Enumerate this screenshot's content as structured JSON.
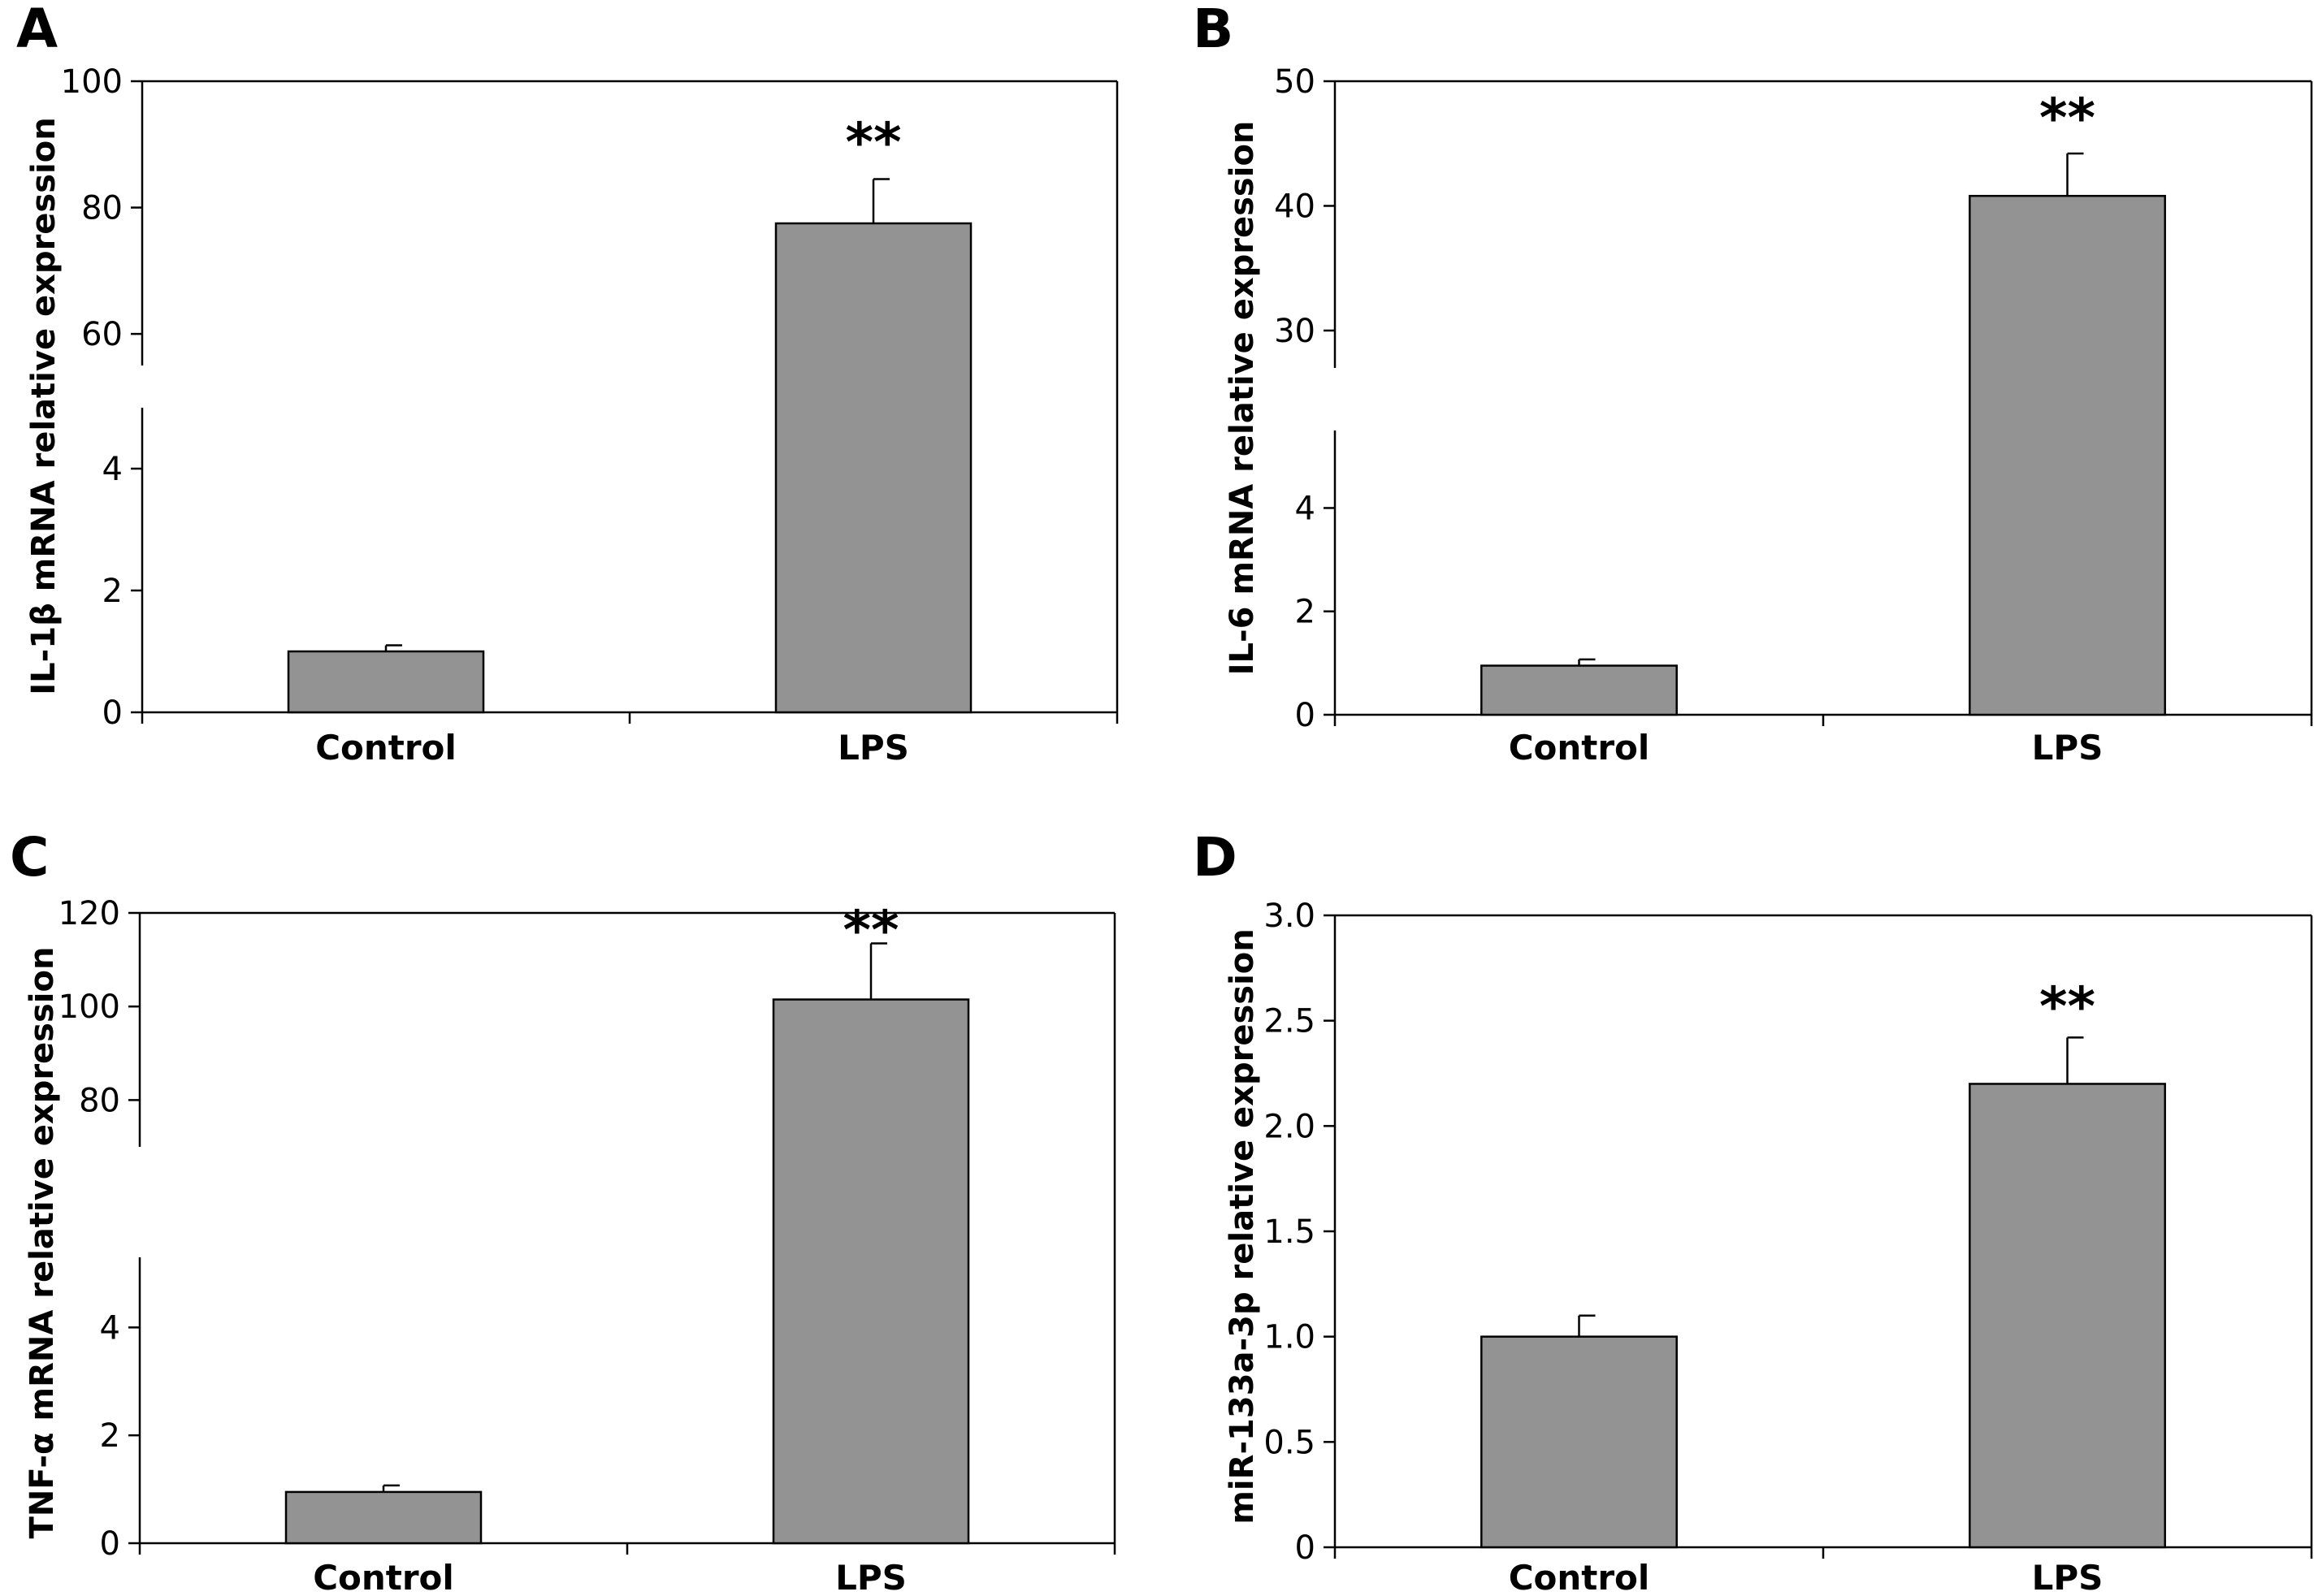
{
  "style": {
    "bar_color": "#939393",
    "line_color": "#000000"
  },
  "chart_data": [
    {
      "type": "bar",
      "panel": "A",
      "ylabel": "IL-1β mRNA relative expression",
      "categories": [
        "Control",
        "LPS"
      ],
      "values": [
        1.0,
        77.5
      ],
      "errors": [
        0.1,
        7.0
      ],
      "significance": [
        "",
        "**"
      ],
      "axis_break": true,
      "lower_range": [
        0,
        5
      ],
      "upper_range": [
        55,
        100
      ],
      "lower_ticks": [
        0,
        2,
        4
      ],
      "upper_ticks": [
        60,
        80,
        100
      ],
      "grid": false
    },
    {
      "type": "bar",
      "panel": "B",
      "ylabel": "IL-6 mRNA relative expression",
      "categories": [
        "Control",
        "LPS"
      ],
      "values": [
        0.95,
        40.8
      ],
      "errors": [
        0.12,
        3.4
      ],
      "significance": [
        "",
        "**"
      ],
      "axis_break": true,
      "lower_range": [
        0,
        5.5
      ],
      "upper_range": [
        27,
        50
      ],
      "lower_ticks": [
        0,
        2,
        4
      ],
      "upper_ticks": [
        30,
        40,
        50
      ],
      "grid": false
    },
    {
      "type": "bar",
      "panel": "C",
      "ylabel": "TNF-α mRNA relative expression",
      "categories": [
        "Control",
        "LPS"
      ],
      "values": [
        0.95,
        101.5
      ],
      "errors": [
        0.12,
        12.0
      ],
      "significance": [
        "",
        "**"
      ],
      "axis_break": true,
      "lower_range": [
        0,
        5.3
      ],
      "upper_range": [
        70,
        120
      ],
      "lower_ticks": [
        0,
        2,
        4
      ],
      "upper_ticks": [
        80,
        100,
        120
      ],
      "grid": false
    },
    {
      "type": "bar",
      "panel": "D",
      "ylabel": "miR-133a-3p relative expression",
      "categories": [
        "Control",
        "LPS"
      ],
      "values": [
        1.0,
        2.2
      ],
      "errors": [
        0.1,
        0.22
      ],
      "significance": [
        "",
        "**"
      ],
      "axis_break": false,
      "ylim": [
        0,
        3.0
      ],
      "ticks": [
        "0",
        "0.5",
        "1.0",
        "1.5",
        "2.0",
        "2.5",
        "3.0"
      ],
      "grid": false
    }
  ]
}
